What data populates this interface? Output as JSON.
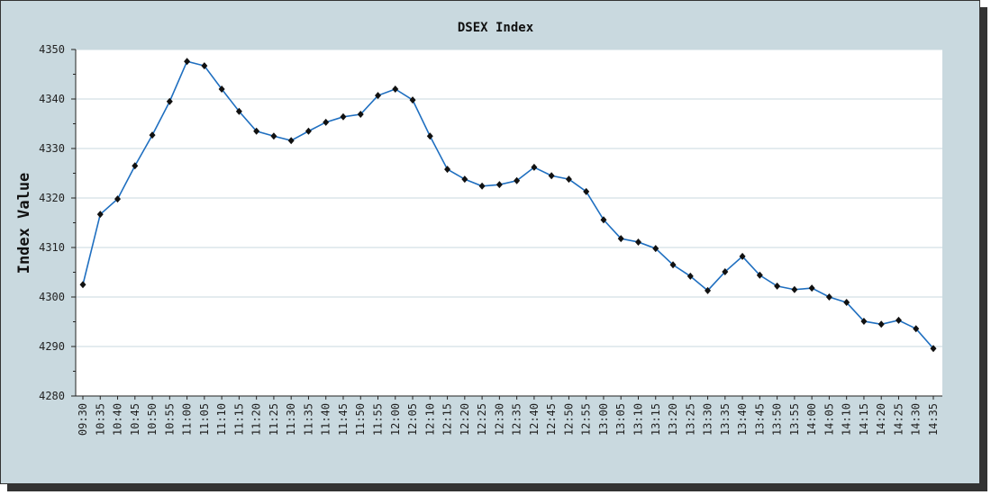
{
  "chart_data": {
    "type": "line",
    "title": "DSEX Index",
    "xlabel": "",
    "ylabel": "Index Value",
    "ylim": [
      4280,
      4350
    ],
    "yticks": [
      4280,
      4290,
      4300,
      4310,
      4320,
      4330,
      4340,
      4350
    ],
    "grid": true,
    "colors": {
      "line": "#1f6fc0",
      "marker": "#111111",
      "background": "#c9d9df",
      "plot": "#ffffff",
      "grid": "#c9d9df"
    },
    "x": [
      "09:30",
      "10:35",
      "10:40",
      "10:45",
      "10:50",
      "10:55",
      "11:00",
      "11:05",
      "11:10",
      "11:15",
      "11:20",
      "11:25",
      "11:30",
      "11:35",
      "11:40",
      "11:45",
      "11:50",
      "11:55",
      "12:00",
      "12:05",
      "12:10",
      "12:15",
      "12:20",
      "12:25",
      "12:30",
      "12:35",
      "12:40",
      "12:45",
      "12:50",
      "12:55",
      "13:00",
      "13:05",
      "13:10",
      "13:15",
      "13:20",
      "13:25",
      "13:30",
      "13:35",
      "13:40",
      "13:45",
      "13:50",
      "13:55",
      "14:00",
      "14:05",
      "14:10",
      "14:15",
      "14:20",
      "14:25",
      "14:30",
      "14:35"
    ],
    "series": [
      {
        "name": "DSEX",
        "values": [
          4302.5,
          4316.7,
          4319.8,
          4326.5,
          4332.7,
          4339.5,
          4347.6,
          4346.7,
          4342.0,
          4337.5,
          4333.5,
          4332.5,
          4331.6,
          4333.5,
          4335.3,
          4336.4,
          4336.9,
          4340.7,
          4342.0,
          4339.8,
          4332.5,
          4325.8,
          4323.8,
          4322.4,
          4322.7,
          4323.5,
          4326.2,
          4324.5,
          4323.8,
          4321.3,
          4315.6,
          4311.8,
          4311.1,
          4309.8,
          4306.5,
          4304.2,
          4301.3,
          4305.1,
          4308.2,
          4304.4,
          4302.2,
          4301.5,
          4301.8,
          4300.0,
          4298.9,
          4295.1,
          4294.5,
          4295.3,
          4293.6,
          4289.6
        ]
      }
    ]
  }
}
